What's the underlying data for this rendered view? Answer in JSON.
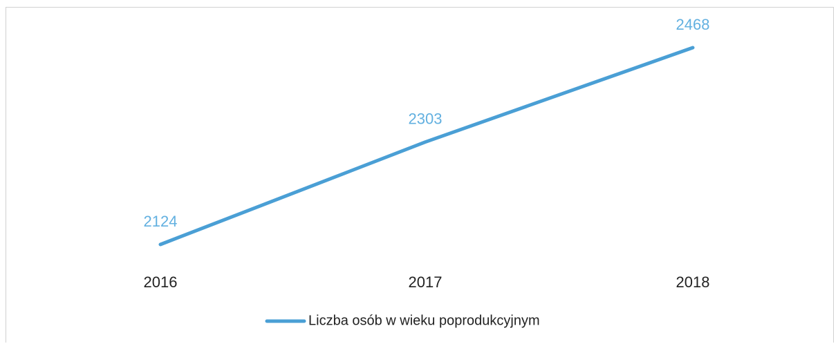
{
  "chart_data": {
    "type": "line",
    "categories": [
      "2016",
      "2017",
      "2018"
    ],
    "series": [
      {
        "name": "Liczba osób w wieku poprodukcyjnym",
        "color": "#4a9fd5",
        "values": [
          2124,
          2303,
          2468
        ]
      }
    ],
    "label_color": "#62b0e0"
  }
}
